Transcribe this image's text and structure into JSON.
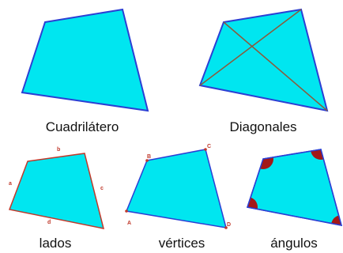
{
  "colors": {
    "fill": "#00e6f0",
    "outline_blue": "#2b3fd4",
    "outline_red": "#c0392b",
    "diagonal": "#8b5a3c",
    "angle_mark": "#a31818",
    "vertex_tag": "#c0392b"
  },
  "captions": {
    "quadrilateral": "Cuadrilátero",
    "diagonals": "Diagonales",
    "sides": "lados",
    "vertices": "vértices",
    "angles": "ángulos"
  },
  "side_labels": {
    "a": "a",
    "b": "b",
    "c": "c",
    "d": "d"
  },
  "vertex_labels": {
    "A": "A",
    "B": "B",
    "C": "C",
    "D": "D"
  }
}
